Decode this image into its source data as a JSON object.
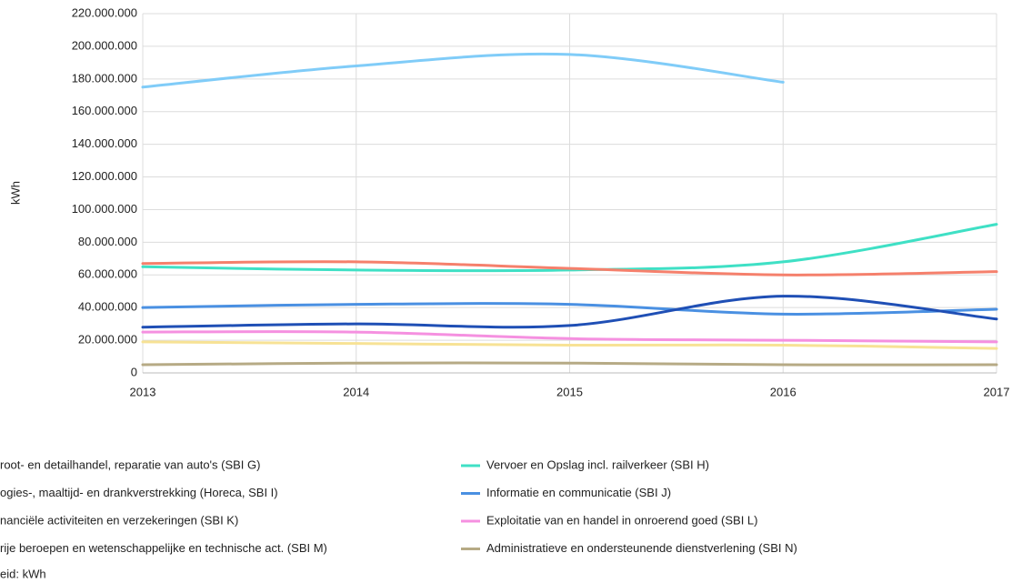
{
  "chart_data": {
    "type": "line",
    "y_label": "kWh",
    "note": "eid: kWh",
    "x": [
      2013,
      2014,
      2015,
      2016,
      2017
    ],
    "xlim": [
      2013,
      2017
    ],
    "xticks": [
      2013,
      2014,
      2015,
      2016,
      2017
    ],
    "ylim": [
      0,
      220000000
    ],
    "yticks": [
      {
        "value": 0,
        "label": "0"
      },
      {
        "value": 20000000,
        "label": "20.000.000"
      },
      {
        "value": 40000000,
        "label": "40.000.000"
      },
      {
        "value": 60000000,
        "label": "60.000.000"
      },
      {
        "value": 80000000,
        "label": "80.000.000"
      },
      {
        "value": 100000000,
        "label": "100.000.000"
      },
      {
        "value": 120000000,
        "label": "120.000.000"
      },
      {
        "value": 140000000,
        "label": "140.000.000"
      },
      {
        "value": 160000000,
        "label": "160.000.000"
      },
      {
        "value": 180000000,
        "label": "180.000.000"
      },
      {
        "value": 200000000,
        "label": "200.000.000"
      },
      {
        "value": 220000000,
        "label": "220.000.000"
      }
    ],
    "grid": true,
    "smooth": true,
    "series": [
      {
        "name": "root- en detailhandel, reparatie van auto's (SBI G)",
        "color": "#80ccf8",
        "values": [
          175000000,
          188000000,
          195000000,
          178000000,
          null
        ]
      },
      {
        "name": "Vervoer en Opslag incl. railverkeer (SBI H)",
        "color": "#3fe0c5",
        "values": [
          65000000,
          63000000,
          63000000,
          68000000,
          91000000
        ]
      },
      {
        "name": "ogies-, maaltijd- en drankverstrekking (Horeca, SBI I)",
        "color": "#f5806c",
        "values": [
          67000000,
          68000000,
          64000000,
          60000000,
          62000000
        ]
      },
      {
        "name": "Informatie en communicatie (SBI J)",
        "color": "#4a90e2",
        "values": [
          40000000,
          42000000,
          42000000,
          36000000,
          39000000
        ]
      },
      {
        "name": "nanciële activiteiten en verzekeringen (SBI K)",
        "color": "#1f4fb5",
        "values": [
          28000000,
          30000000,
          29000000,
          47000000,
          33000000
        ]
      },
      {
        "name": "Exploitatie van en handel in onroerend goed (SBI L)",
        "color": "#f590e0",
        "values": [
          25000000,
          25000000,
          21000000,
          20000000,
          19000000
        ]
      },
      {
        "name": "rije beroepen en wetenschappelijke en technische act. (SBI M)",
        "color": "#f7e295",
        "values": [
          19000000,
          18000000,
          17000000,
          17000000,
          15000000
        ]
      },
      {
        "name": "Administratieve en ondersteunende dienstverlening (SBI N)",
        "color": "#b6aa85",
        "values": [
          5000000,
          6000000,
          6000000,
          5000000,
          5000000
        ]
      }
    ]
  }
}
